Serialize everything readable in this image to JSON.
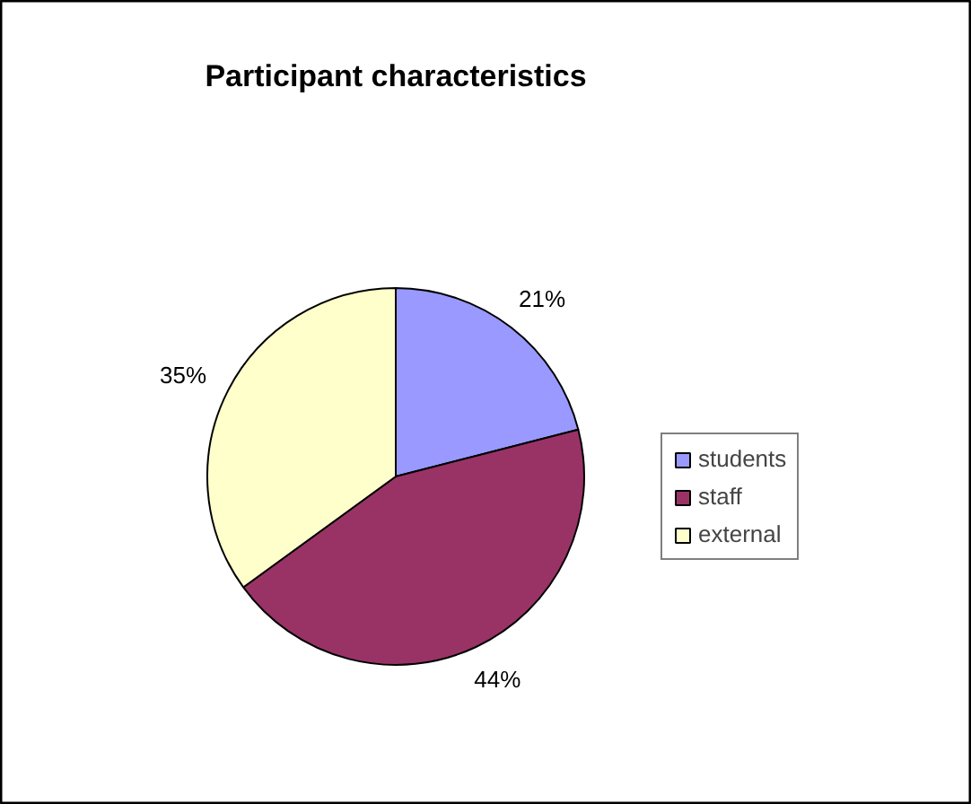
{
  "chart_data": {
    "type": "pie",
    "title": "Participant characteristics",
    "categories": [
      "students",
      "staff",
      "external"
    ],
    "values": [
      21,
      44,
      35
    ],
    "colors": [
      "#9999ff",
      "#993366",
      "#ffffcc"
    ],
    "value_labels": [
      "21%",
      "44%",
      "35%"
    ],
    "legend": "right"
  }
}
